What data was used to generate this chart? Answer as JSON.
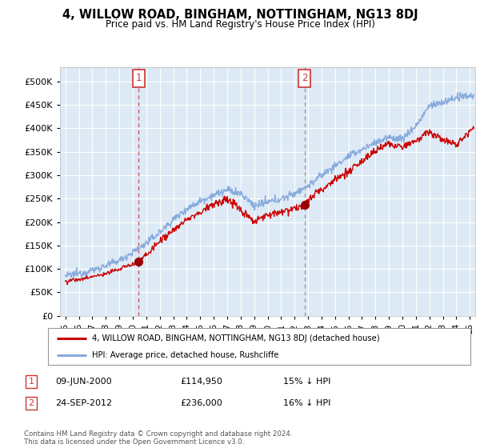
{
  "title": "4, WILLOW ROAD, BINGHAM, NOTTINGHAM, NG13 8DJ",
  "subtitle": "Price paid vs. HM Land Registry's House Price Index (HPI)",
  "plot_bg_color": "#ddeaf5",
  "sale1_date_x": 2000.44,
  "sale1_price": 114950,
  "sale1_label": "1",
  "sale2_date_x": 2012.73,
  "sale2_price": 236000,
  "sale2_label": "2",
  "ylim": [
    0,
    530000
  ],
  "xlim_start": 1994.6,
  "xlim_end": 2025.4,
  "red_line_color": "#cc0000",
  "blue_line_color": "#88aadd",
  "grid_color": "#ffffff",
  "annotation_box_color": "#cc3333",
  "sale1_vline_color": "#cc3333",
  "sale2_vline_color": "#888888",
  "legend_label_red": "4, WILLOW ROAD, BINGHAM, NOTTINGHAM, NG13 8DJ (detached house)",
  "legend_label_blue": "HPI: Average price, detached house, Rushcliffe",
  "table_row1": [
    "1",
    "09-JUN-2000",
    "£114,950",
    "15% ↓ HPI"
  ],
  "table_row2": [
    "2",
    "24-SEP-2012",
    "£236,000",
    "16% ↓ HPI"
  ],
  "footer": "Contains HM Land Registry data © Crown copyright and database right 2024.\nThis data is licensed under the Open Government Licence v3.0.",
  "yticks": [
    0,
    50000,
    100000,
    150000,
    200000,
    250000,
    300000,
    350000,
    400000,
    450000,
    500000
  ],
  "xtick_labels": [
    "95",
    "96",
    "97",
    "98",
    "99",
    "00",
    "01",
    "02",
    "03",
    "04",
    "05",
    "06",
    "07",
    "08",
    "09",
    "10",
    "11",
    "12",
    "13",
    "14",
    "15",
    "16",
    "17",
    "18",
    "19",
    "20",
    "21",
    "22",
    "23",
    "24",
    "25"
  ],
  "xtick_values": [
    1995,
    1996,
    1997,
    1998,
    1999,
    2000,
    2001,
    2002,
    2003,
    2004,
    2005,
    2006,
    2007,
    2008,
    2009,
    2010,
    2011,
    2012,
    2013,
    2014,
    2015,
    2016,
    2017,
    2018,
    2019,
    2020,
    2021,
    2022,
    2023,
    2024,
    2025
  ]
}
